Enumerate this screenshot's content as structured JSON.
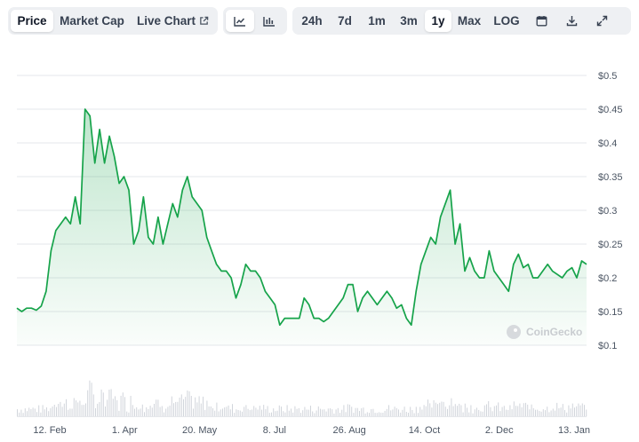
{
  "tabs": {
    "price": "Price",
    "market_cap": "Market Cap",
    "live_chart": "Live Chart"
  },
  "view_icons": [
    "line-chart-icon",
    "candlestick-chart-icon"
  ],
  "ranges": [
    "24h",
    "7d",
    "1m",
    "3m",
    "1y",
    "Max",
    "LOG"
  ],
  "active_range": "1y",
  "action_icons": [
    "calendar-icon",
    "download-icon",
    "expand-icon"
  ],
  "watermark": "CoinGecko",
  "colors": {
    "line": "#16a34a",
    "fill_top": "#16a34a",
    "grid": "#e5e7eb",
    "volume": "#d1d5db"
  },
  "chart_data": {
    "type": "area",
    "ylim": [
      0.1,
      0.5
    ],
    "yticks": [
      "$0.5",
      "$0.45",
      "$0.4",
      "$0.35",
      "$0.3",
      "$0.25",
      "$0.2",
      "$0.15",
      "$0.1"
    ],
    "xticks": [
      "12. Feb",
      "1. Apr",
      "20. May",
      "8. Jul",
      "26. Aug",
      "14. Oct",
      "2. Dec",
      "13. Jan"
    ],
    "grid": true,
    "series": [
      {
        "x": [
          "Jan 19",
          "Jan 23",
          "Jan 27",
          "Jan 31",
          "Feb 4",
          "Feb 8",
          "Feb 12",
          "Feb 16",
          "Feb 20",
          "Feb 24",
          "Feb 28",
          "Mar 3",
          "Mar 7",
          "Mar 10",
          "Mar 12",
          "Mar 14",
          "Mar 16",
          "Mar 18",
          "Mar 21",
          "Mar 24",
          "Mar 27",
          "Mar 30",
          "Apr 2",
          "Apr 5",
          "Apr 8",
          "Apr 11",
          "Apr 14",
          "Apr 17",
          "Apr 20",
          "Apr 23",
          "Apr 26",
          "Apr 29",
          "May 2",
          "May 5",
          "May 8",
          "May 11",
          "May 14",
          "May 17",
          "May 20",
          "May 23",
          "May 26",
          "May 29",
          "Jun 1",
          "Jun 4",
          "Jun 7",
          "Jun 10",
          "Jun 13",
          "Jun 16",
          "Jun 19",
          "Jun 22",
          "Jun 25",
          "Jun 28",
          "Jul 1",
          "Jul 4",
          "Jul 8",
          "Jul 11",
          "Jul 14",
          "Jul 17",
          "Jul 20",
          "Jul 23",
          "Jul 26",
          "Jul 29",
          "Aug 1",
          "Aug 4",
          "Aug 7",
          "Aug 10",
          "Aug 13",
          "Aug 16",
          "Aug 19",
          "Aug 22",
          "Aug 26",
          "Aug 29",
          "Sep 1",
          "Sep 4",
          "Sep 7",
          "Sep 10",
          "Sep 13",
          "Sep 16",
          "Sep 19",
          "Sep 22",
          "Sep 25",
          "Sep 28",
          "Oct 1",
          "Oct 4",
          "Oct 7",
          "Oct 10",
          "Oct 14",
          "Oct 17",
          "Oct 20",
          "Oct 23",
          "Oct 26",
          "Oct 29",
          "Nov 1",
          "Nov 4",
          "Nov 7",
          "Nov 10",
          "Nov 13",
          "Nov 16",
          "Nov 19",
          "Nov 22",
          "Nov 25",
          "Nov 28",
          "Dec 1",
          "Dec 4",
          "Dec 7",
          "Dec 10",
          "Dec 13",
          "Dec 16",
          "Dec 19",
          "Dec 22",
          "Dec 25",
          "Dec 28",
          "Dec 31",
          "Jan 3",
          "Jan 6",
          "Jan 9",
          "Jan 12",
          "Jan 15"
        ],
        "values": [
          0.155,
          0.15,
          0.155,
          0.155,
          0.152,
          0.158,
          0.18,
          0.24,
          0.27,
          0.28,
          0.29,
          0.28,
          0.32,
          0.28,
          0.45,
          0.44,
          0.37,
          0.42,
          0.37,
          0.41,
          0.38,
          0.34,
          0.35,
          0.33,
          0.25,
          0.27,
          0.32,
          0.26,
          0.25,
          0.29,
          0.25,
          0.28,
          0.31,
          0.29,
          0.33,
          0.35,
          0.32,
          0.31,
          0.3,
          0.26,
          0.24,
          0.22,
          0.21,
          0.21,
          0.2,
          0.17,
          0.19,
          0.22,
          0.21,
          0.21,
          0.2,
          0.18,
          0.17,
          0.16,
          0.13,
          0.14,
          0.14,
          0.14,
          0.14,
          0.17,
          0.16,
          0.14,
          0.14,
          0.135,
          0.14,
          0.15,
          0.16,
          0.17,
          0.19,
          0.19,
          0.15,
          0.17,
          0.18,
          0.17,
          0.16,
          0.17,
          0.18,
          0.17,
          0.155,
          0.16,
          0.14,
          0.13,
          0.18,
          0.22,
          0.24,
          0.26,
          0.25,
          0.29,
          0.31,
          0.33,
          0.25,
          0.28,
          0.21,
          0.23,
          0.21,
          0.2,
          0.2,
          0.24,
          0.21,
          0.2,
          0.19,
          0.18,
          0.22,
          0.235,
          0.215,
          0.22,
          0.2,
          0.2,
          0.21,
          0.22,
          0.21,
          0.205,
          0.2,
          0.21,
          0.215,
          0.2,
          0.225,
          0.22
        ]
      }
    ]
  }
}
